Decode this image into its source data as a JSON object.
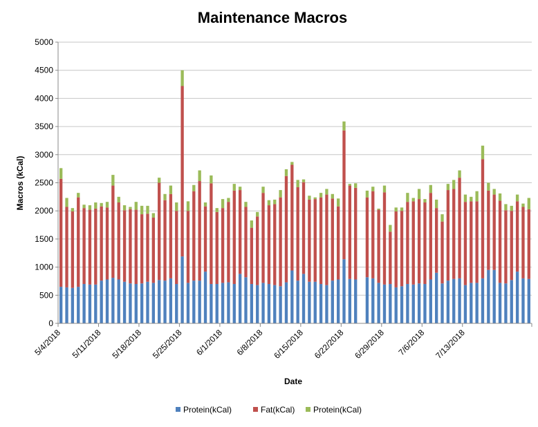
{
  "chart_data": {
    "type": "bar",
    "stacked": true,
    "title": "Maintenance Macros",
    "xlabel": "Date",
    "ylabel": "Macros (kCal)",
    "ylim": [
      0,
      5000
    ],
    "yticks": [
      0,
      500,
      1000,
      1500,
      2000,
      2500,
      3000,
      3500,
      4000,
      4500,
      5000
    ],
    "grid": "horizontal major gridlines",
    "legend_position": "bottom",
    "x_tick_labels": [
      "5/4/2018",
      "5/11/2018",
      "5/18/2018",
      "5/25/2018",
      "6/1/2018",
      "6/8/2018",
      "6/15/2018",
      "6/22/2018",
      "6/29/2018",
      "7/6/2018",
      "7/13/2018"
    ],
    "x_start": "5/4/2018",
    "x_end": "7/24/2018",
    "series": [
      {
        "name": "Protein(kCal)",
        "color": "#4f81bd",
        "values": [
          650,
          640,
          630,
          650,
          700,
          690,
          690,
          760,
          780,
          810,
          780,
          740,
          710,
          700,
          710,
          740,
          720,
          770,
          760,
          800,
          700,
          1190,
          720,
          760,
          760,
          920,
          700,
          700,
          720,
          730,
          700,
          880,
          820,
          700,
          680,
          720,
          700,
          680,
          660,
          730,
          940,
          760,
          880,
          740,
          740,
          700,
          680,
          760,
          780,
          1140,
          790,
          780,
          null,
          820,
          800,
          720,
          690,
          700,
          640,
          660,
          700,
          690,
          710,
          700,
          780,
          900,
          710,
          760,
          790,
          800,
          680,
          720,
          720,
          800,
          950,
          950,
          720,
          710,
          770,
          920,
          800,
          790
        ]
      },
      {
        "name": "Fat(kCal)",
        "color": "#c0504d",
        "values": [
          1920,
          1430,
          1360,
          1590,
          1350,
          1330,
          1350,
          1320,
          1280,
          1640,
          1370,
          1270,
          1320,
          1320,
          1230,
          1210,
          1160,
          1730,
          1430,
          1500,
          1300,
          3030,
          1280,
          1590,
          1770,
          1160,
          1790,
          1280,
          1330,
          1430,
          1660,
          1490,
          1250,
          1000,
          1220,
          1600,
          1400,
          1440,
          1580,
          1890,
          1880,
          1660,
          1630,
          1460,
          1470,
          1540,
          1610,
          1460,
          1300,
          2290,
          1660,
          1630,
          null,
          1420,
          1550,
          1300,
          1640,
          930,
          1350,
          1340,
          1460,
          1480,
          1500,
          1450,
          1540,
          1150,
          1100,
          1610,
          1600,
          1790,
          1480,
          1450,
          1450,
          2120,
          1410,
          1340,
          1460,
          1300,
          1230,
          1250,
          1270,
          1240
        ]
      },
      {
        "name": "Protein(kCal)",
        "color": "#9bbb59",
        "values": [
          190,
          160,
          60,
          80,
          60,
          80,
          110,
          60,
          100,
          190,
          100,
          90,
          40,
          140,
          150,
          140,
          80,
          90,
          110,
          150,
          150,
          280,
          170,
          110,
          190,
          70,
          140,
          70,
          160,
          70,
          120,
          60,
          90,
          130,
          80,
          110,
          90,
          80,
          130,
          120,
          50,
          130,
          50,
          70,
          30,
          80,
          100,
          80,
          140,
          160,
          30,
          80,
          null,
          120,
          80,
          20,
          120,
          120,
          70,
          60,
          160,
          60,
          180,
          60,
          140,
          150,
          130,
          110,
          160,
          130,
          130,
          80,
          180,
          240,
          140,
          100,
          130,
          110,
          90,
          120,
          60,
          200
        ]
      }
    ]
  }
}
